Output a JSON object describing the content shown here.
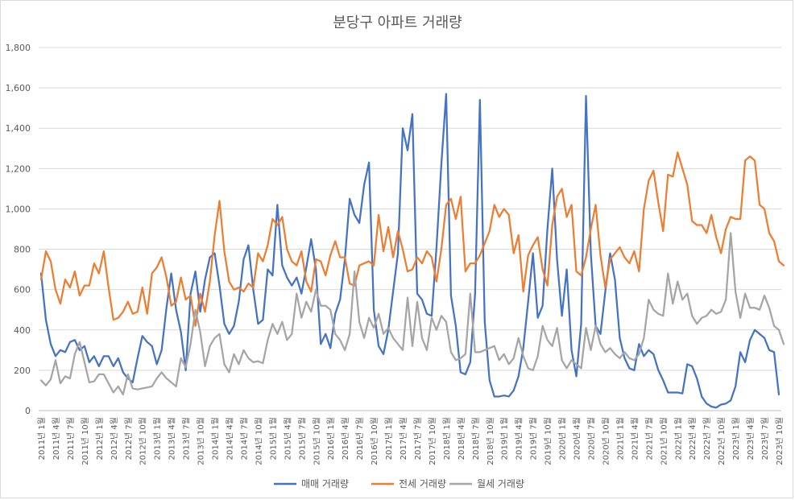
{
  "chart_data": {
    "type": "line",
    "title": "분당구 아파트 거래량",
    "xlabel": "",
    "ylabel": "",
    "ylim": [
      0,
      1800
    ],
    "yticks": [
      "0",
      "200",
      "400",
      "600",
      "800",
      "1,000",
      "1,200",
      "1,400",
      "1,600",
      "1,800"
    ],
    "grid": true,
    "legend": "bottom",
    "x_start": "2011-01",
    "x_tick_labels": [
      "2011년 1월",
      "2011년 4월",
      "2011년 7월",
      "2011년 10월",
      "2012년 1월",
      "2012년 4월",
      "2012년 7월",
      "2012년 10월",
      "2013년 1월",
      "2013년 4월",
      "2013년 7월",
      "2013년 10월",
      "2014년 1월",
      "2014년 4월",
      "2014년 7월",
      "2014년 10월",
      "2015년 1월",
      "2015년 4월",
      "2015년 7월",
      "2015년 10월",
      "2016년 1월",
      "2016년 4월",
      "2016년 7월",
      "2016년 10월",
      "2017년 1월",
      "2017년 4월",
      "2017년 7월",
      "2017년 10월",
      "2018년 1월",
      "2018년 4월",
      "2018년 7월",
      "2018년 10월",
      "2019년 1월",
      "2019년 4월",
      "2019년 7월",
      "2019년 10월",
      "2020년 1월",
      "2020년 4월",
      "2020년 7월",
      "2020년 10월",
      "2021년 1월",
      "2021년 4월",
      "2021년 7월",
      "2021년 10월",
      "2022년 1월",
      "2022년 4월",
      "2022년 7월",
      "2022년 10월",
      "2023년 1월",
      "2023년 4월",
      "2023년 7월",
      "2023년 10월"
    ],
    "series": [
      {
        "name": "매매 거래량",
        "color": "#4472C4",
        "values": [
          680,
          450,
          330,
          270,
          300,
          290,
          340,
          350,
          300,
          320,
          240,
          270,
          220,
          270,
          270,
          220,
          260,
          190,
          160,
          140,
          260,
          370,
          340,
          320,
          230,
          300,
          510,
          680,
          500,
          390,
          200,
          580,
          690,
          490,
          650,
          760,
          780,
          620,
          430,
          380,
          420,
          540,
          750,
          820,
          600,
          430,
          450,
          700,
          670,
          1020,
          720,
          660,
          620,
          660,
          580,
          710,
          850,
          700,
          330,
          380,
          310,
          480,
          550,
          750,
          1050,
          970,
          930,
          1120,
          1230,
          500,
          320,
          280,
          400,
          590,
          780,
          1400,
          1290,
          1470,
          580,
          550,
          480,
          470,
          810,
          1220,
          1570,
          570,
          420,
          190,
          180,
          240,
          580,
          1540,
          440,
          150,
          70,
          70,
          75,
          70,
          100,
          170,
          310,
          540,
          780,
          460,
          520,
          900,
          1200,
          750,
          470,
          700,
          300,
          170,
          430,
          1560,
          780,
          420,
          380,
          590,
          780,
          650,
          360,
          260,
          210,
          200,
          330,
          270,
          300,
          280,
          200,
          150,
          90,
          90,
          90,
          85,
          230,
          220,
          160,
          70,
          35,
          20,
          15,
          30,
          35,
          50,
          120,
          290,
          240,
          350,
          400,
          380,
          360,
          300,
          290,
          80
        ]
      },
      {
        "name": "전세 거래량",
        "color": "#ED7D31",
        "values": [
          650,
          790,
          740,
          600,
          530,
          650,
          610,
          690,
          570,
          620,
          620,
          730,
          680,
          790,
          610,
          450,
          460,
          490,
          540,
          480,
          490,
          610,
          480,
          680,
          710,
          760,
          660,
          520,
          540,
          660,
          550,
          570,
          420,
          580,
          490,
          640,
          870,
          1040,
          790,
          640,
          600,
          610,
          590,
          630,
          610,
          780,
          740,
          820,
          950,
          920,
          960,
          800,
          740,
          720,
          790,
          640,
          590,
          750,
          740,
          670,
          770,
          840,
          760,
          760,
          630,
          620,
          720,
          730,
          740,
          720,
          970,
          790,
          910,
          760,
          890,
          800,
          690,
          700,
          760,
          730,
          790,
          760,
          640,
          800,
          1020,
          1050,
          950,
          1060,
          690,
          730,
          730,
          770,
          830,
          890,
          1020,
          960,
          1000,
          970,
          780,
          870,
          590,
          770,
          820,
          860,
          700,
          620,
          920,
          1060,
          1100,
          960,
          1020,
          690,
          670,
          760,
          900,
          1020,
          770,
          610,
          750,
          780,
          810,
          760,
          730,
          790,
          690,
          1000,
          1140,
          1190,
          1030,
          890,
          1170,
          1160,
          1280,
          1200,
          1120,
          940,
          920,
          920,
          880,
          970,
          860,
          780,
          900,
          960,
          950,
          950,
          1240,
          1260,
          1240,
          1020,
          1000,
          880,
          840,
          740,
          720
        ]
      },
      {
        "name": "월세 거래량",
        "color": "#A5A5A5",
        "values": [
          150,
          125,
          155,
          250,
          135,
          170,
          160,
          280,
          340,
          240,
          140,
          145,
          180,
          180,
          135,
          90,
          120,
          80,
          180,
          110,
          105,
          110,
          115,
          120,
          160,
          190,
          160,
          140,
          120,
          260,
          215,
          330,
          500,
          390,
          220,
          320,
          360,
          380,
          230,
          190,
          280,
          230,
          300,
          260,
          240,
          245,
          235,
          350,
          430,
          380,
          440,
          350,
          380,
          580,
          460,
          540,
          490,
          600,
          520,
          520,
          500,
          380,
          350,
          300,
          380,
          690,
          440,
          360,
          460,
          410,
          480,
          380,
          410,
          360,
          330,
          300,
          560,
          320,
          540,
          360,
          300,
          460,
          400,
          470,
          440,
          290,
          250,
          260,
          280,
          580,
          290,
          290,
          300,
          310,
          320,
          250,
          280,
          230,
          260,
          360,
          270,
          210,
          200,
          270,
          420,
          350,
          320,
          410,
          250,
          210,
          250,
          230,
          210,
          410,
          300,
          420,
          330,
          290,
          310,
          280,
          260,
          290,
          260,
          250,
          280,
          360,
          550,
          500,
          480,
          470,
          680,
          530,
          640,
          550,
          580,
          470,
          430,
          460,
          470,
          500,
          480,
          490,
          550,
          880,
          590,
          460,
          580,
          510,
          510,
          500,
          570,
          510,
          420,
          400,
          330
        ]
      }
    ]
  }
}
